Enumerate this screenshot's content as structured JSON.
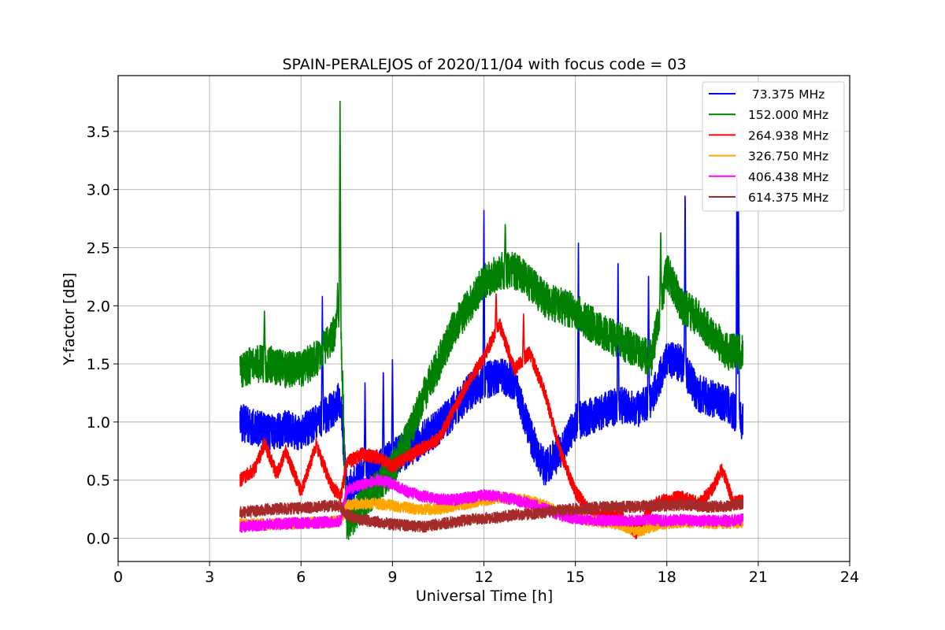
{
  "chart_data": {
    "type": "line",
    "title": "SPAIN-PERALEJOS of 2020/11/04 with focus code = 03",
    "xlabel": "Universal Time [h]",
    "ylabel": "Y-factor [dB]",
    "xlim": [
      0,
      24
    ],
    "ylim": [
      -0.2,
      3.98
    ],
    "xticks": [
      0,
      3,
      6,
      9,
      12,
      15,
      18,
      21,
      24
    ],
    "yticks": [
      0.0,
      0.5,
      1.0,
      1.5,
      2.0,
      2.5,
      3.0,
      3.5
    ],
    "ytick_labels": [
      "0.0",
      "0.5",
      "1.0",
      "1.5",
      "2.0",
      "2.5",
      "3.0",
      "3.5"
    ],
    "grid": true,
    "legend_position": "top-right",
    "series": [
      {
        "name": " 73.375 MHz",
        "color": "#0000ff",
        "noise": 0.16,
        "x": [
          4.0,
          4.5,
          5.0,
          5.5,
          6.0,
          6.5,
          7.0,
          7.3,
          7.5,
          8.0,
          8.5,
          9.0,
          9.5,
          10.0,
          10.5,
          11.0,
          11.5,
          12.0,
          12.5,
          13.0,
          13.5,
          14.0,
          14.5,
          15.0,
          15.5,
          16.0,
          16.5,
          17.0,
          17.5,
          18.0,
          18.5,
          19.0,
          19.5,
          20.0,
          20.5
        ],
        "y": [
          1.0,
          0.95,
          0.9,
          0.95,
          0.9,
          1.0,
          1.1,
          1.2,
          0.4,
          0.55,
          0.6,
          0.7,
          0.75,
          0.85,
          0.95,
          1.1,
          1.25,
          1.35,
          1.4,
          1.35,
          0.9,
          0.6,
          0.75,
          1.0,
          1.05,
          1.1,
          1.15,
          1.1,
          1.2,
          1.55,
          1.5,
          1.25,
          1.2,
          1.15,
          1.0
        ]
      },
      {
        "name": "152.000 MHz",
        "color": "#008000",
        "noise": 0.16,
        "x": [
          4.0,
          4.5,
          5.0,
          5.5,
          6.0,
          6.5,
          7.0,
          7.3,
          7.5,
          8.0,
          8.5,
          9.0,
          9.5,
          10.0,
          10.5,
          11.0,
          11.5,
          12.0,
          12.5,
          13.0,
          13.5,
          14.0,
          14.5,
          15.0,
          15.5,
          16.0,
          16.5,
          17.0,
          17.5,
          18.0,
          18.5,
          19.0,
          19.5,
          20.0,
          20.5
        ],
        "y": [
          1.45,
          1.5,
          1.5,
          1.45,
          1.45,
          1.55,
          1.7,
          1.9,
          0.1,
          0.3,
          0.45,
          0.6,
          0.85,
          1.2,
          1.5,
          1.8,
          2.0,
          2.2,
          2.3,
          2.3,
          2.2,
          2.05,
          2.0,
          1.95,
          1.85,
          1.75,
          1.7,
          1.6,
          1.55,
          2.3,
          2.0,
          1.9,
          1.75,
          1.6,
          1.6
        ]
      },
      {
        "name": "264.938 MHz",
        "color": "#ff0000",
        "noise": 0.06,
        "x": [
          4.0,
          4.5,
          4.8,
          5.2,
          5.5,
          6.0,
          6.5,
          7.0,
          7.3,
          7.5,
          8.0,
          8.5,
          9.0,
          9.5,
          10.0,
          10.5,
          11.0,
          11.5,
          12.0,
          12.5,
          13.0,
          13.5,
          14.0,
          14.5,
          15.0,
          15.5,
          16.0,
          16.5,
          17.0,
          17.5,
          18.0,
          18.5,
          19.0,
          19.5,
          19.8,
          20.2,
          20.5
        ],
        "y": [
          0.5,
          0.6,
          0.82,
          0.55,
          0.75,
          0.4,
          0.8,
          0.45,
          0.35,
          0.65,
          0.72,
          0.7,
          0.62,
          0.7,
          0.78,
          0.85,
          1.1,
          1.35,
          1.55,
          1.85,
          1.45,
          1.6,
          1.25,
          0.75,
          0.4,
          0.22,
          0.2,
          0.18,
          0.05,
          0.28,
          0.33,
          0.35,
          0.3,
          0.42,
          0.6,
          0.3,
          0.32
        ]
      },
      {
        "name": "326.750 MHz",
        "color": "#ffa500",
        "noise": 0.05,
        "x": [
          4.0,
          5.0,
          6.0,
          7.0,
          7.3,
          7.5,
          8.0,
          8.5,
          9.0,
          9.5,
          10.0,
          10.5,
          11.0,
          11.5,
          12.0,
          12.5,
          13.0,
          13.5,
          14.0,
          14.5,
          15.0,
          15.5,
          16.0,
          16.5,
          17.0,
          17.5,
          18.0,
          18.5,
          19.0,
          19.5,
          20.0,
          20.5
        ],
        "y": [
          0.12,
          0.12,
          0.13,
          0.14,
          0.15,
          0.28,
          0.3,
          0.3,
          0.28,
          0.26,
          0.25,
          0.25,
          0.28,
          0.3,
          0.33,
          0.35,
          0.34,
          0.32,
          0.28,
          0.22,
          0.18,
          0.15,
          0.14,
          0.12,
          0.05,
          0.1,
          0.13,
          0.14,
          0.14,
          0.13,
          0.13,
          0.14
        ]
      },
      {
        "name": "406.438 MHz",
        "color": "#ff00ff",
        "noise": 0.05,
        "x": [
          4.0,
          5.0,
          6.0,
          7.0,
          7.3,
          7.5,
          8.0,
          8.5,
          9.0,
          9.5,
          10.0,
          10.5,
          11.0,
          11.5,
          12.0,
          12.5,
          13.0,
          13.5,
          14.0,
          14.5,
          15.0,
          15.5,
          16.0,
          16.5,
          17.0,
          17.5,
          18.0,
          18.5,
          19.0,
          19.5,
          20.0,
          20.5
        ],
        "y": [
          0.1,
          0.12,
          0.13,
          0.14,
          0.15,
          0.42,
          0.46,
          0.5,
          0.47,
          0.4,
          0.36,
          0.34,
          0.33,
          0.35,
          0.37,
          0.36,
          0.33,
          0.3,
          0.25,
          0.2,
          0.17,
          0.16,
          0.15,
          0.15,
          0.15,
          0.16,
          0.15,
          0.16,
          0.15,
          0.15,
          0.15,
          0.16
        ]
      },
      {
        "name": "614.375 MHz",
        "color": "#a52a2a",
        "noise": 0.05,
        "x": [
          4.0,
          5.0,
          6.0,
          7.0,
          7.3,
          7.5,
          8.0,
          8.5,
          9.0,
          9.5,
          10.0,
          10.5,
          11.0,
          11.5,
          12.0,
          12.5,
          13.0,
          13.5,
          14.0,
          14.5,
          15.0,
          15.5,
          16.0,
          16.5,
          17.0,
          17.5,
          18.0,
          18.5,
          19.0,
          19.5,
          20.0,
          20.5
        ],
        "y": [
          0.22,
          0.25,
          0.26,
          0.28,
          0.27,
          0.2,
          0.16,
          0.14,
          0.12,
          0.11,
          0.1,
          0.12,
          0.14,
          0.16,
          0.17,
          0.18,
          0.2,
          0.21,
          0.22,
          0.24,
          0.25,
          0.26,
          0.27,
          0.27,
          0.27,
          0.28,
          0.28,
          0.29,
          0.28,
          0.27,
          0.28,
          0.3
        ]
      }
    ],
    "spikes": [
      {
        "series": 0,
        "x": 6.7,
        "y": 2.08
      },
      {
        "series": 0,
        "x": 8.1,
        "y": 1.35
      },
      {
        "series": 0,
        "x": 8.7,
        "y": 1.48
      },
      {
        "series": 0,
        "x": 9.0,
        "y": 1.55
      },
      {
        "series": 0,
        "x": 12.0,
        "y": 2.87
      },
      {
        "series": 0,
        "x": 15.1,
        "y": 2.62
      },
      {
        "series": 0,
        "x": 16.4,
        "y": 2.45
      },
      {
        "series": 0,
        "x": 17.4,
        "y": 2.29
      },
      {
        "series": 0,
        "x": 18.6,
        "y": 3.05
      },
      {
        "series": 0,
        "x": 20.3,
        "y": 3.2
      },
      {
        "series": 0,
        "x": 20.35,
        "y": 2.9
      },
      {
        "series": 1,
        "x": 4.8,
        "y": 1.97
      },
      {
        "series": 1,
        "x": 7.28,
        "y": 3.79
      },
      {
        "series": 1,
        "x": 7.2,
        "y": 2.2
      },
      {
        "series": 1,
        "x": 12.7,
        "y": 2.72
      },
      {
        "series": 1,
        "x": 17.8,
        "y": 2.66
      },
      {
        "series": 2,
        "x": 12.4,
        "y": 2.12
      },
      {
        "series": 2,
        "x": 13.3,
        "y": 1.95
      }
    ]
  }
}
